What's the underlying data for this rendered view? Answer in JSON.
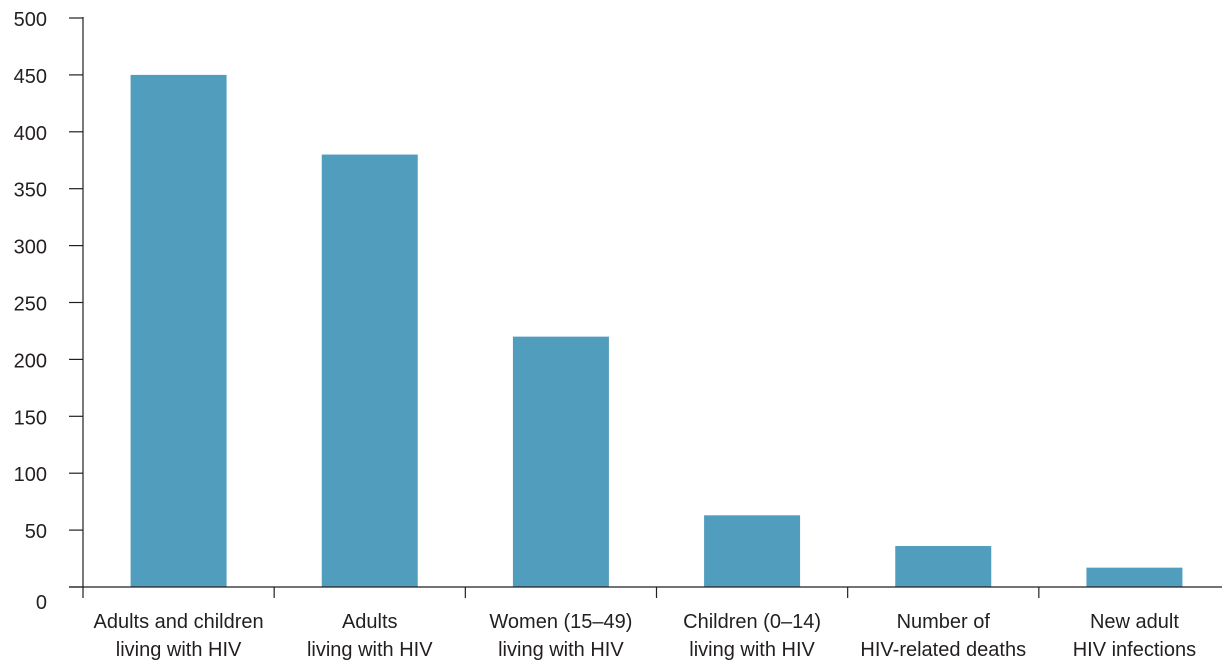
{
  "chart_data": {
    "type": "bar",
    "title": "",
    "xlabel": "",
    "ylabel": "",
    "categories": [
      [
        "Adults and children",
        "living with HIV"
      ],
      [
        "Adults",
        "living with HIV"
      ],
      [
        "Women (15–49)",
        "living with HIV"
      ],
      [
        "Children (0–14)",
        "living with HIV"
      ],
      [
        "Number of",
        "HIV-related deaths"
      ],
      [
        "New adult",
        "HIV infections"
      ]
    ],
    "values": [
      450,
      380,
      220,
      63,
      36,
      17
    ],
    "ylim": [
      0,
      500
    ],
    "yticks": [
      0,
      50,
      100,
      150,
      200,
      250,
      300,
      350,
      400,
      450,
      500
    ],
    "bar_color": "#519dbd",
    "axis_color": "#231f20",
    "grid": false,
    "legend": "none"
  }
}
